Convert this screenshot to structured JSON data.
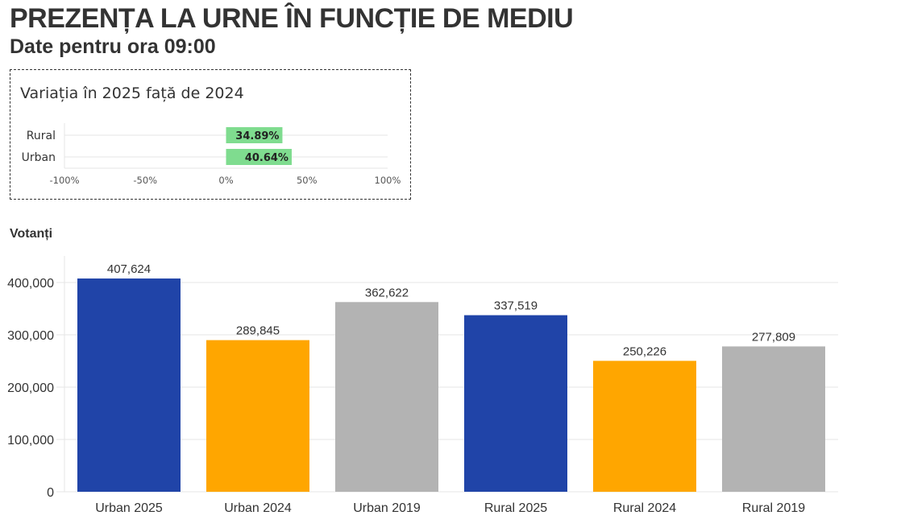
{
  "header": {
    "title": "PREZENȚA LA URNE ÎN FUNCȚIE DE MEDIU",
    "subtitle": "Date pentru ora 09:00"
  },
  "colors": {
    "2025": "#2044a8",
    "2024": "#ffa600",
    "2019": "#b3b3b3",
    "variation_bar": "#7fdc8f",
    "text": "#333333",
    "grid": "#e6e6e6"
  },
  "chart_data": [
    {
      "type": "bar",
      "orientation": "horizontal",
      "title": "Variația în 2025 față de 2024",
      "categories": [
        "Rural",
        "Urban"
      ],
      "values": [
        34.89,
        40.64
      ],
      "value_labels": [
        "34.89%",
        "40.64%"
      ],
      "xlim": [
        -100,
        100
      ],
      "xticks": [
        "-100%",
        "-50%",
        "0%",
        "50%",
        "100%"
      ],
      "grid": true
    },
    {
      "type": "bar",
      "title": "",
      "ylabel": "Votanți",
      "categories": [
        "Urban 2025",
        "Urban 2024",
        "Urban 2019",
        "Rural 2025",
        "Rural 2024",
        "Rural 2019"
      ],
      "values": [
        407624,
        289845,
        362622,
        337519,
        250226,
        277809
      ],
      "value_labels": [
        "407,624",
        "289,845",
        "362,622",
        "337,519",
        "250,226",
        "277,809"
      ],
      "bar_colors": [
        "#2044a8",
        "#ffa600",
        "#b3b3b3",
        "#2044a8",
        "#ffa600",
        "#b3b3b3"
      ],
      "ylim": [
        0,
        400000
      ],
      "yticks": [
        "0",
        "100,000",
        "200,000",
        "300,000",
        "400,000"
      ],
      "grid": true
    }
  ]
}
